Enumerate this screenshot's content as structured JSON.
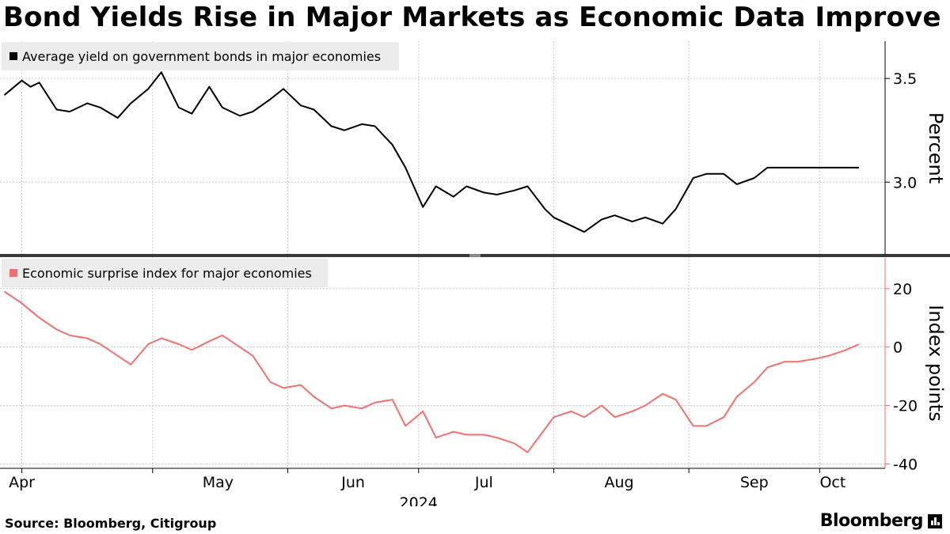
{
  "title": "Bond Yields Rise in Major Markets as Economic Data Improve",
  "source": "Source: Bloomberg, Citigroup",
  "brand": "Bloomberg",
  "chart_data": [
    {
      "type": "line",
      "legend": "Average yield on government bonds in major economies",
      "ylabel": "Percent",
      "color": "#000000",
      "yticks": [
        "3.5",
        "3.0"
      ],
      "ytick_values": [
        3.5,
        3.0
      ],
      "ylim": [
        2.65,
        3.68
      ],
      "x": [
        "2024-03-28",
        "2024-04-01",
        "2024-04-03",
        "2024-04-05",
        "2024-04-09",
        "2024-04-12",
        "2024-04-16",
        "2024-04-19",
        "2024-04-23",
        "2024-04-26",
        "2024-04-30",
        "2024-05-03",
        "2024-05-07",
        "2024-05-10",
        "2024-05-14",
        "2024-05-17",
        "2024-05-21",
        "2024-05-24",
        "2024-05-28",
        "2024-05-31",
        "2024-06-04",
        "2024-06-07",
        "2024-06-11",
        "2024-06-14",
        "2024-06-18",
        "2024-06-21",
        "2024-06-25",
        "2024-06-28",
        "2024-07-02",
        "2024-07-05",
        "2024-07-09",
        "2024-07-12",
        "2024-07-16",
        "2024-07-19",
        "2024-07-23",
        "2024-07-26",
        "2024-07-30",
        "2024-08-01",
        "2024-08-05",
        "2024-08-08",
        "2024-08-12",
        "2024-08-15",
        "2024-08-19",
        "2024-08-22",
        "2024-08-26",
        "2024-08-29",
        "2024-09-02",
        "2024-09-05",
        "2024-09-09",
        "2024-09-12",
        "2024-09-16",
        "2024-09-19",
        "2024-09-23",
        "2024-09-26",
        "2024-09-30",
        "2024-10-03",
        "2024-10-07",
        "2024-10-10"
      ],
      "values": [
        3.42,
        3.49,
        3.46,
        3.48,
        3.35,
        3.34,
        3.38,
        3.36,
        3.31,
        3.38,
        3.45,
        3.53,
        3.36,
        3.33,
        3.46,
        3.36,
        3.32,
        3.34,
        3.4,
        3.45,
        3.37,
        3.35,
        3.27,
        3.25,
        3.28,
        3.27,
        3.18,
        3.07,
        2.88,
        2.98,
        2.93,
        2.98,
        2.95,
        2.94,
        2.96,
        2.98,
        2.87,
        2.83,
        2.79,
        2.76,
        2.82,
        2.84,
        2.81,
        2.83,
        2.8,
        2.87,
        3.02,
        3.04,
        3.04,
        2.99,
        3.02,
        3.07,
        3.07,
        3.07,
        3.07,
        3.07,
        3.07,
        3.07
      ]
    },
    {
      "type": "line",
      "legend": "Economic surprise index for major economies",
      "ylabel": "Index points",
      "color": "#f0706f",
      "yticks": [
        "20",
        "0",
        "-20",
        "-40"
      ],
      "ytick_values": [
        20,
        0,
        -20,
        -40
      ],
      "ylim": [
        -41.5,
        30.5
      ],
      "x": [
        "2024-03-28",
        "2024-04-01",
        "2024-04-05",
        "2024-04-09",
        "2024-04-12",
        "2024-04-16",
        "2024-04-19",
        "2024-04-23",
        "2024-04-26",
        "2024-04-30",
        "2024-05-03",
        "2024-05-07",
        "2024-05-10",
        "2024-05-14",
        "2024-05-17",
        "2024-05-21",
        "2024-05-24",
        "2024-05-28",
        "2024-05-31",
        "2024-06-04",
        "2024-06-07",
        "2024-06-11",
        "2024-06-14",
        "2024-06-18",
        "2024-06-21",
        "2024-06-25",
        "2024-06-28",
        "2024-07-02",
        "2024-07-05",
        "2024-07-09",
        "2024-07-12",
        "2024-07-16",
        "2024-07-19",
        "2024-07-23",
        "2024-07-26",
        "2024-07-30",
        "2024-08-01",
        "2024-08-05",
        "2024-08-08",
        "2024-08-12",
        "2024-08-15",
        "2024-08-19",
        "2024-08-22",
        "2024-08-26",
        "2024-08-29",
        "2024-09-02",
        "2024-09-05",
        "2024-09-09",
        "2024-09-12",
        "2024-09-16",
        "2024-09-19",
        "2024-09-23",
        "2024-09-26",
        "2024-09-30",
        "2024-10-03",
        "2024-10-07",
        "2024-10-10"
      ],
      "values": [
        19,
        15,
        10,
        6,
        4,
        3,
        1,
        -3,
        -6,
        1,
        3,
        1,
        -1,
        2,
        4,
        0,
        -3,
        -12,
        -14,
        -13,
        -17,
        -21,
        -20,
        -21,
        -19,
        -18,
        -27,
        -22,
        -31,
        -29,
        -30,
        -30,
        -31,
        -33,
        -36,
        -28,
        -24,
        -22,
        -24,
        -20,
        -24,
        -22,
        -20,
        -16,
        -18,
        -27,
        -27,
        -24,
        -17,
        -12,
        -7,
        -5,
        -5,
        -4,
        -3,
        -1,
        1
      ]
    }
  ],
  "x_axis": {
    "months": [
      "Apr",
      "May",
      "Jun",
      "Jul",
      "Aug",
      "Sep",
      "Oct"
    ],
    "month_dates": [
      "2024-04-01",
      "2024-05-01",
      "2024-06-01",
      "2024-07-01",
      "2024-08-01",
      "2024-09-01",
      "2024-10-01"
    ],
    "month_label_dates": [
      "2024-04-01",
      "2024-05-16",
      "2024-06-16",
      "2024-07-16",
      "2024-08-16",
      "2024-09-16",
      "2024-10-04"
    ],
    "year": "2024",
    "range": [
      "2024-03-27",
      "2024-10-16"
    ]
  }
}
